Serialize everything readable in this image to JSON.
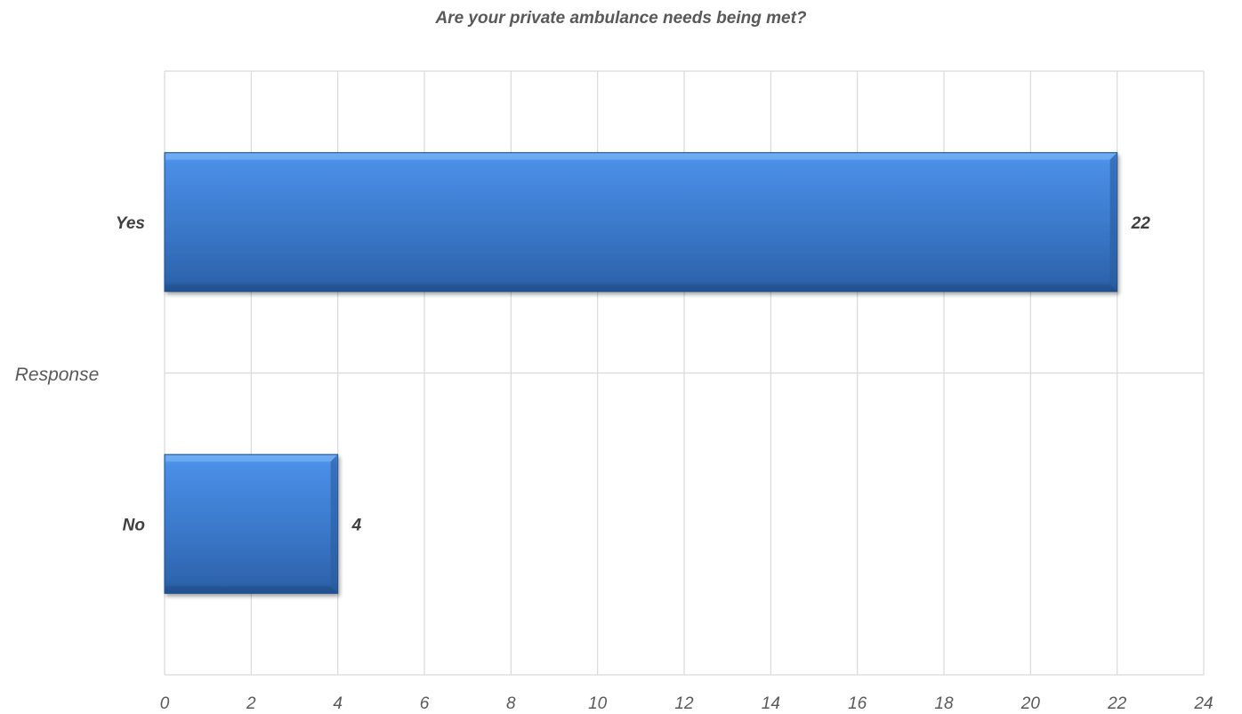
{
  "chart_data": {
    "type": "bar",
    "orientation": "horizontal",
    "title": "Are your private ambulance needs being met?",
    "ylabel": "Response",
    "xlabel": "",
    "categories": [
      "Yes",
      "No"
    ],
    "values": [
      22,
      4
    ],
    "data_labels": [
      "22",
      "4"
    ],
    "xlim": [
      0,
      24
    ],
    "x_ticks": [
      "0",
      "2",
      "4",
      "6",
      "8",
      "10",
      "12",
      "14",
      "16",
      "18",
      "20",
      "22",
      "24"
    ],
    "grid": true,
    "legend": "none",
    "colors": {
      "bar_top": "#4A8EE6",
      "bar_bottom": "#2E64AE",
      "bar_edge": "#1F4E8C",
      "grid": "#D9D9D9",
      "text": "#595959"
    }
  }
}
